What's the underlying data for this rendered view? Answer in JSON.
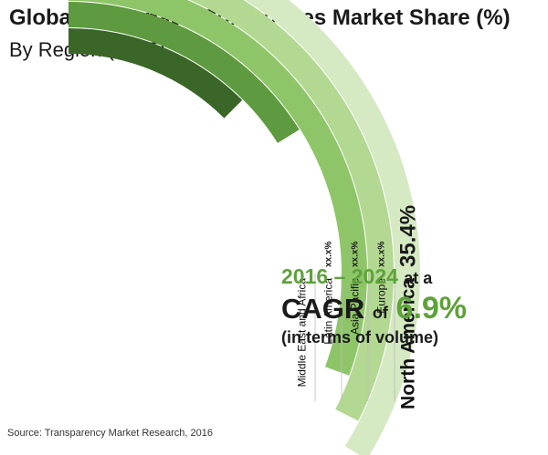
{
  "title": "Global Aerospace Composites Market Share (%)",
  "subtitle": "By Region (2015)",
  "chart_data": {
    "type": "radial-bar",
    "categories": [
      "North America",
      "Europe",
      "Asia Pacific",
      "Latin America",
      "Middle East and Africa"
    ],
    "values": [
      35.4,
      null,
      null,
      null,
      null
    ],
    "value_labels": [
      "35.4%",
      "xx.x%",
      "xx.x%",
      "xx.x%",
      "xx.x%"
    ],
    "colors": [
      "#d5e9c3",
      "#b3d892",
      "#8fc569",
      "#5e9a3f",
      "#3a6628"
    ]
  },
  "cagr": {
    "period": "2016 – 2024",
    "at_a": "at a",
    "cagr_label": "CAGR",
    "of": "of",
    "rate": "6.9%",
    "note": "(in terms of volume)"
  },
  "source": "Source: Transparency Market Research, 2016"
}
